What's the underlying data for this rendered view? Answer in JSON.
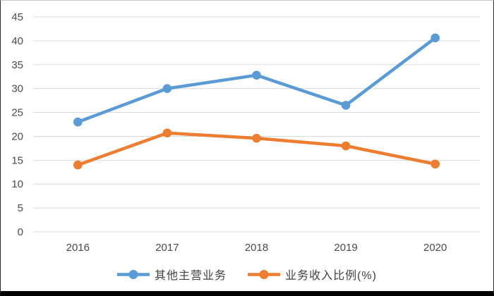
{
  "chart_data": {
    "type": "line",
    "categories": [
      "2016",
      "2017",
      "2018",
      "2019",
      "2020"
    ],
    "series": [
      {
        "name": "其他主营业务",
        "color": "#5B9BD5",
        "values": [
          23,
          30,
          32.8,
          26.5,
          40.6
        ]
      },
      {
        "name": "业务收入比例(%)",
        "color": "#ED7D31",
        "values": [
          14,
          20.7,
          19.6,
          18,
          14.2
        ]
      }
    ],
    "title": "",
    "xlabel": "",
    "ylabel": "",
    "ylim": [
      0,
      45
    ],
    "yticks": [
      0,
      5,
      10,
      15,
      20,
      25,
      30,
      35,
      40,
      45
    ],
    "grid": true,
    "legend_position": "bottom",
    "marker": "circle"
  },
  "style": {
    "gridline_color": "#D9D9D9",
    "tick_label_color": "#4a4a4a",
    "background_color": "#ffffff",
    "frame_bottom_bar_color": "#000000"
  }
}
